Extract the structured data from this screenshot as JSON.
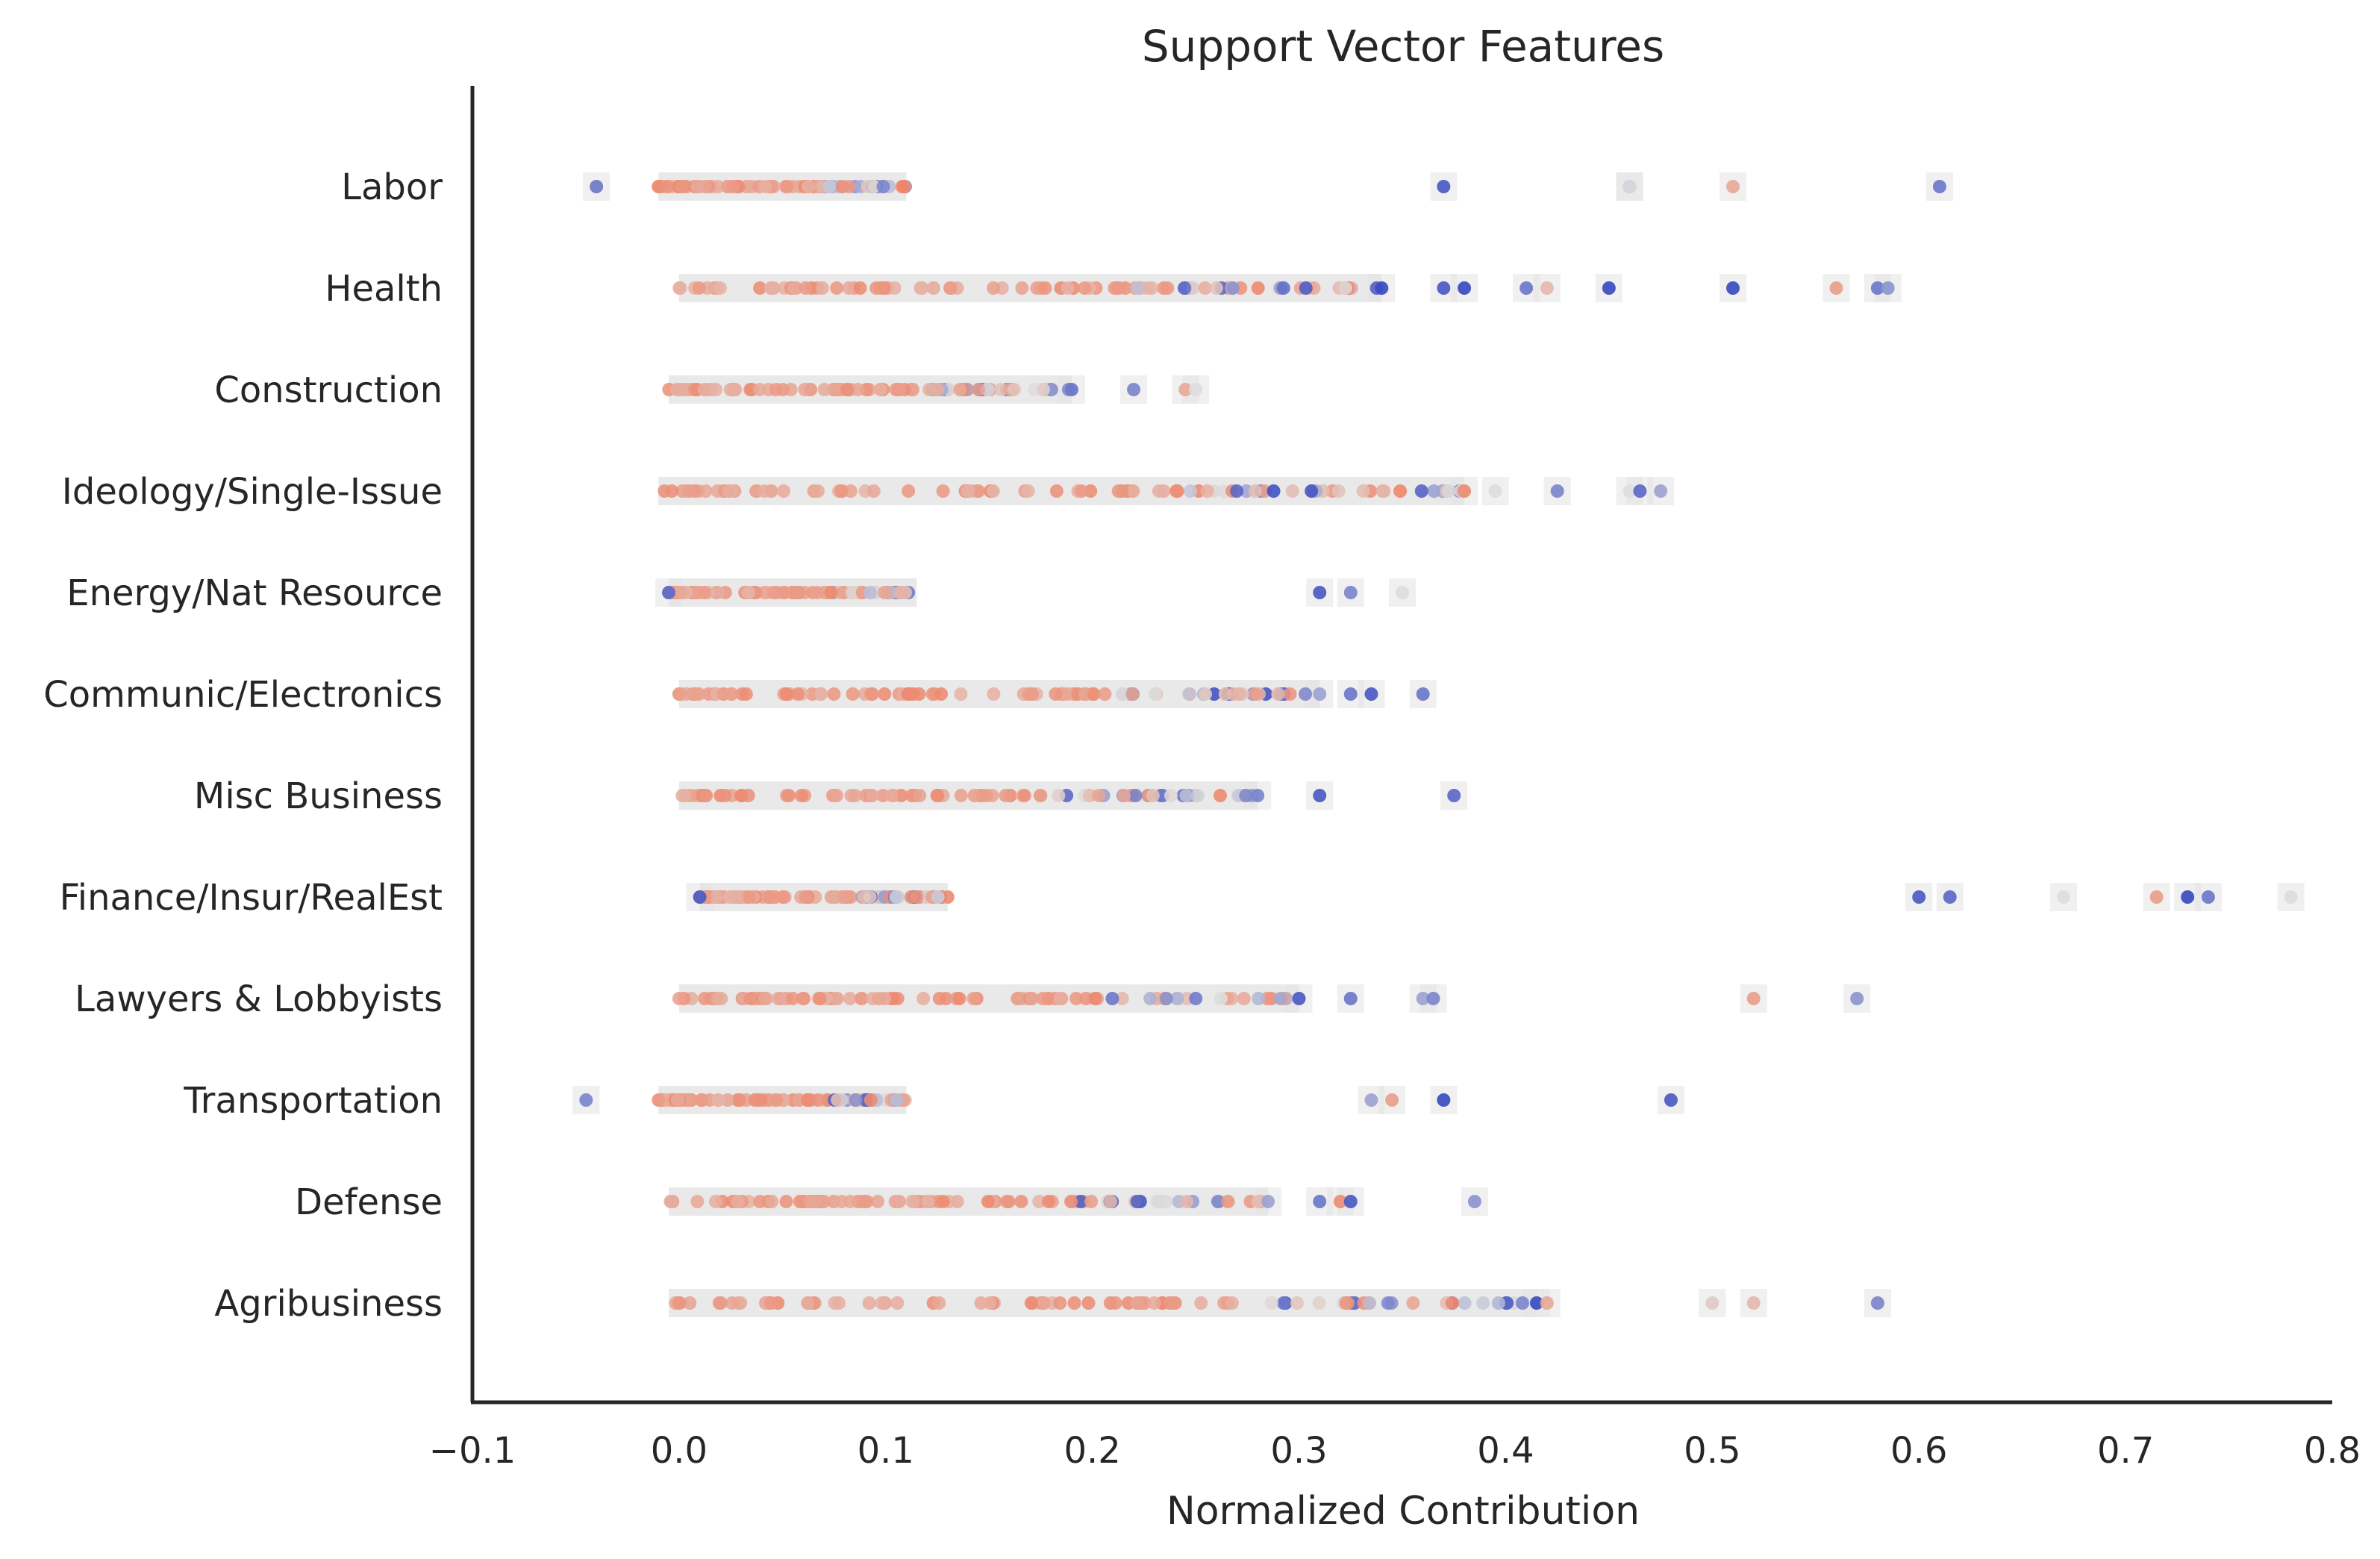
{
  "chart_data": {
    "type": "scatter",
    "title": "Support Vector Features",
    "xlabel": "Normalized Contribution",
    "ylabel": "",
    "xlim": [
      -0.1,
      0.8
    ],
    "xticks": [
      -0.1,
      0.0,
      0.1,
      0.2,
      0.3,
      0.4,
      0.5,
      0.6,
      0.7,
      0.8
    ],
    "xtick_labels": [
      "−0.1",
      "0.0",
      "0.1",
      "0.2",
      "0.3",
      "0.4",
      "0.5",
      "0.6",
      "0.7",
      "0.8"
    ],
    "categories": [
      "Labor",
      "Health",
      "Construction",
      "Ideology/Single-Issue",
      "Energy/Nat Resource",
      "Communic/Electronics",
      "Misc Business",
      "Finance/Insur/RealEst",
      "Lawyers & Lobbyists",
      "Transportation",
      "Defense",
      "Agribusiness"
    ],
    "grid": false,
    "colormap": "coolwarm",
    "colors": {
      "low": "#3b4cc0",
      "mid": "#dddddd",
      "high": "#ee8468",
      "band": "#e4e4e4"
    },
    "series": [
      {
        "category": "Labor",
        "range": [
          -0.04,
          0.61
        ],
        "highlights": [
          [
            -0.04,
            0.15
          ],
          [
            0.37,
            0.05
          ],
          [
            0.46,
            0.2
          ],
          [
            0.46,
            0.5
          ],
          [
            0.51,
            0.8
          ],
          [
            0.61,
            0.15
          ]
        ]
      },
      {
        "category": "Health",
        "range": [
          0.0,
          0.65
        ],
        "highlights": [
          [
            0.34,
            0.0
          ],
          [
            0.37,
            0.05
          ],
          [
            0.38,
            0.0
          ],
          [
            0.41,
            0.15
          ],
          [
            0.42,
            0.7
          ],
          [
            0.45,
            0.0
          ],
          [
            0.51,
            0.0
          ],
          [
            0.56,
            0.85
          ],
          [
            0.58,
            0.15
          ],
          [
            0.585,
            0.25
          ]
        ]
      },
      {
        "category": "Construction",
        "range": [
          -0.005,
          0.25
        ],
        "highlights": [
          [
            0.19,
            0.15
          ],
          [
            0.22,
            0.2
          ],
          [
            0.245,
            0.8
          ],
          [
            0.25,
            0.5
          ]
        ]
      },
      {
        "category": "Ideology/Single-Issue",
        "range": [
          -0.01,
          0.48
        ],
        "highlights": [
          [
            0.38,
            0.95
          ],
          [
            0.395,
            0.5
          ],
          [
            0.425,
            0.2
          ],
          [
            0.46,
            0.5
          ],
          [
            0.465,
            0.1
          ],
          [
            0.475,
            0.3
          ]
        ]
      },
      {
        "category": "Energy/Nat Resource",
        "range": [
          -0.005,
          0.36
        ],
        "highlights": [
          [
            -0.005,
            0.1
          ],
          [
            0.31,
            0.05
          ],
          [
            0.325,
            0.2
          ],
          [
            0.35,
            0.5
          ]
        ]
      },
      {
        "category": "Communic/Electronics",
        "range": [
          0.0,
          0.36
        ],
        "highlights": [
          [
            0.31,
            0.3
          ],
          [
            0.325,
            0.15
          ],
          [
            0.335,
            0.05
          ],
          [
            0.36,
            0.15
          ]
        ]
      },
      {
        "category": "Misc Business",
        "range": [
          0.0,
          0.375
        ],
        "highlights": [
          [
            0.28,
            0.2
          ],
          [
            0.31,
            0.05
          ],
          [
            0.375,
            0.1
          ]
        ]
      },
      {
        "category": "Finance/Insur/RealEst",
        "range": [
          0.01,
          0.78
        ],
        "highlights": [
          [
            0.01,
            0.05
          ],
          [
            0.6,
            0.05
          ],
          [
            0.615,
            0.1
          ],
          [
            0.67,
            0.5
          ],
          [
            0.715,
            0.85
          ],
          [
            0.73,
            0.0
          ],
          [
            0.74,
            0.15
          ],
          [
            0.78,
            0.5
          ]
        ]
      },
      {
        "category": "Lawyers & Lobbyists",
        "range": [
          0.0,
          0.57
        ],
        "highlights": [
          [
            0.3,
            0.05
          ],
          [
            0.325,
            0.15
          ],
          [
            0.36,
            0.3
          ],
          [
            0.365,
            0.2
          ],
          [
            0.52,
            0.85
          ],
          [
            0.57,
            0.25
          ]
        ]
      },
      {
        "category": "Transportation",
        "range": [
          -0.045,
          0.48
        ],
        "highlights": [
          [
            -0.045,
            0.2
          ],
          [
            0.335,
            0.3
          ],
          [
            0.345,
            0.85
          ],
          [
            0.37,
            0.0
          ],
          [
            0.48,
            0.05
          ]
        ]
      },
      {
        "category": "Defense",
        "range": [
          -0.005,
          0.39
        ],
        "highlights": [
          [
            0.285,
            0.3
          ],
          [
            0.31,
            0.15
          ],
          [
            0.32,
            0.95
          ],
          [
            0.325,
            0.05
          ],
          [
            0.385,
            0.25
          ]
        ]
      },
      {
        "category": "Agribusiness",
        "range": [
          -0.005,
          0.58
        ],
        "highlights": [
          [
            0.415,
            0.0
          ],
          [
            0.42,
            0.8
          ],
          [
            0.5,
            0.6
          ],
          [
            0.52,
            0.7
          ],
          [
            0.58,
            0.2
          ]
        ]
      }
    ]
  }
}
